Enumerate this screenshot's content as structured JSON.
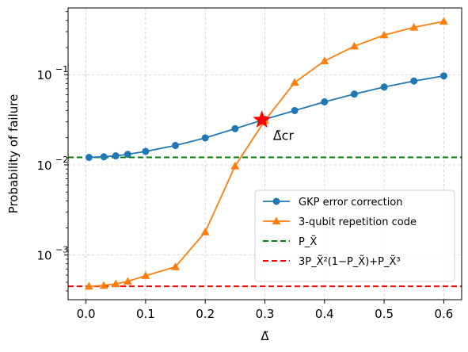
{
  "chart_data": {
    "type": "line",
    "title": "",
    "xlabel": "Δ̃",
    "ylabel": "Probability of failure",
    "xlim": [
      -0.03,
      0.63
    ],
    "ylim": [
      0.00032,
      0.55
    ],
    "yscale": "log",
    "grid": true,
    "legend_position": "lower-right",
    "xticks": [
      0.0,
      0.1,
      0.2,
      0.3,
      0.4,
      0.5,
      0.6
    ],
    "xtick_labels": [
      "0.0",
      "0.1",
      "0.2",
      "0.3",
      "0.4",
      "0.5",
      "0.6"
    ],
    "yticks": [
      0.001,
      0.01,
      0.1
    ],
    "ytick_labels": [
      "10",
      "10",
      "10"
    ],
    "ytick_exponents": [
      "−3",
      "−2",
      "−1"
    ],
    "series": [
      {
        "name": "GKP error correction",
        "color": "#1f77b4",
        "marker": "circle",
        "x": [
          0.005,
          0.03,
          0.05,
          0.07,
          0.1,
          0.15,
          0.2,
          0.25,
          0.3,
          0.35,
          0.4,
          0.45,
          0.5,
          0.55,
          0.6
        ],
        "y": [
          0.0121,
          0.0123,
          0.0126,
          0.0131,
          0.0141,
          0.0164,
          0.0199,
          0.0252,
          0.032,
          0.04,
          0.05,
          0.061,
          0.073,
          0.085,
          0.097
        ]
      },
      {
        "name": "3-qubit repetition code",
        "color": "#ff7f0e",
        "marker": "triangle",
        "x": [
          0.005,
          0.03,
          0.05,
          0.07,
          0.1,
          0.15,
          0.2,
          0.25,
          0.3,
          0.35,
          0.4,
          0.45,
          0.5,
          0.55,
          0.6
        ],
        "y": [
          0.00045,
          0.00046,
          0.00048,
          0.00051,
          0.00059,
          0.00074,
          0.0018,
          0.0097,
          0.031,
          0.082,
          0.142,
          0.207,
          0.275,
          0.335,
          0.39
        ]
      }
    ],
    "reference_lines": [
      {
        "name": "P_X̃",
        "color": "#008000",
        "y": 0.0121,
        "style": "dashed"
      },
      {
        "name": "3P_X̃²(1−P_X̃)+P_X̃³",
        "color": "#ff0000",
        "y": 0.00045,
        "style": "dashed"
      }
    ],
    "annotations": [
      {
        "text": "Δ̃cr",
        "marker": "star",
        "color": "#ff0000",
        "x": 0.295,
        "y": 0.0315
      }
    ]
  }
}
